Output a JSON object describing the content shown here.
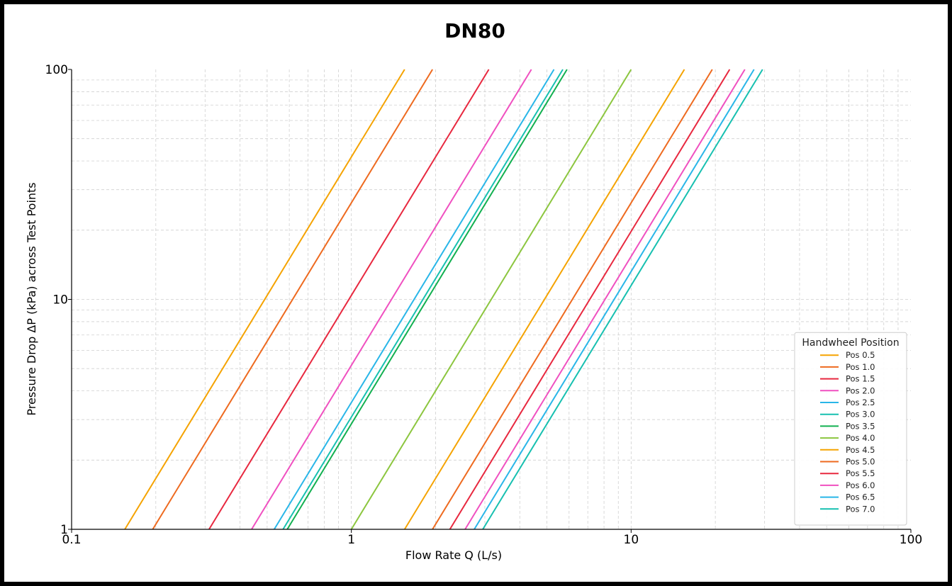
{
  "chart_data": {
    "type": "line",
    "title": "DN80",
    "xlabel": "Flow Rate Q (L/s)",
    "ylabel": "Pressure Drop ΔP (kPa)  across Test Points",
    "xscale": "log",
    "yscale": "log",
    "xlim": [
      0.1,
      100
    ],
    "ylim": [
      1,
      100
    ],
    "x_ticks": [
      "0.1",
      "1",
      "10",
      "100"
    ],
    "y_ticks": [
      "1",
      "10",
      "100"
    ],
    "grid": true,
    "legend": {
      "title": "Handwheel Position",
      "placement": "lower-right"
    },
    "series": [
      {
        "name": "Pos 0.5",
        "color": "#f5a300",
        "x": [
          0.155,
          1.55
        ],
        "y": [
          1,
          100
        ]
      },
      {
        "name": "Pos 1.0",
        "color": "#ee6a1f",
        "x": [
          0.195,
          1.95
        ],
        "y": [
          1,
          100
        ]
      },
      {
        "name": "Pos 1.5",
        "color": "#e8283f",
        "x": [
          0.31,
          3.1
        ],
        "y": [
          1,
          100
        ]
      },
      {
        "name": "Pos 2.0",
        "color": "#f050c0",
        "x": [
          0.44,
          4.4
        ],
        "y": [
          1,
          100
        ]
      },
      {
        "name": "Pos 2.5",
        "color": "#29b6e8",
        "x": [
          0.53,
          5.3
        ],
        "y": [
          1,
          100
        ]
      },
      {
        "name": "Pos 3.0",
        "color": "#17c0b0",
        "x": [
          0.57,
          5.7
        ],
        "y": [
          1,
          100
        ]
      },
      {
        "name": "Pos 3.5",
        "color": "#12b050",
        "x": [
          0.59,
          5.9
        ],
        "y": [
          1,
          100
        ]
      },
      {
        "name": "Pos 4.0",
        "color": "#8cc63f",
        "x": [
          1.0,
          10.0
        ],
        "y": [
          1,
          100
        ]
      },
      {
        "name": "Pos 4.5",
        "color": "#f5a300",
        "x": [
          1.55,
          15.5
        ],
        "y": [
          1,
          100
        ]
      },
      {
        "name": "Pos 5.0",
        "color": "#ee6a1f",
        "x": [
          1.95,
          19.5
        ],
        "y": [
          1,
          100
        ]
      },
      {
        "name": "Pos 5.5",
        "color": "#e8283f",
        "x": [
          2.25,
          22.5
        ],
        "y": [
          1,
          100
        ]
      },
      {
        "name": "Pos 6.0",
        "color": "#f050c0",
        "x": [
          2.55,
          25.5
        ],
        "y": [
          1,
          100
        ]
      },
      {
        "name": "Pos 6.5",
        "color": "#29b6e8",
        "x": [
          2.75,
          27.5
        ],
        "y": [
          1,
          100
        ]
      },
      {
        "name": "Pos 7.0",
        "color": "#17c0b0",
        "x": [
          2.95,
          29.5
        ],
        "y": [
          1,
          100
        ]
      }
    ]
  }
}
